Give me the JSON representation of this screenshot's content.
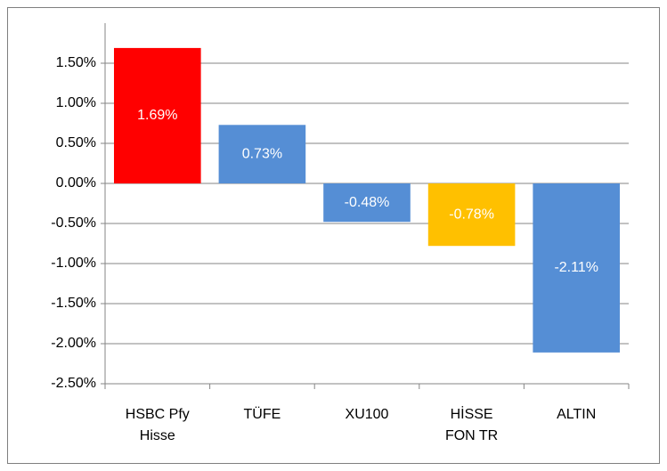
{
  "chart_data": {
    "type": "bar",
    "categories": [
      "HSBC Pfy Hisse",
      "TÜFE",
      "XU100",
      "HİSSE FON TR",
      "ALTIN"
    ],
    "values": [
      1.69,
      0.73,
      -0.48,
      -0.78,
      -2.11
    ],
    "value_labels": [
      "1.69%",
      "0.73%",
      "-0.48%",
      "-0.78%",
      "-2.11%"
    ],
    "colors": [
      "#ff0000",
      "#558ed5",
      "#558ed5",
      "#ffc000",
      "#558ed5"
    ],
    "ylim": [
      -2.5,
      2.0
    ],
    "yticks": [
      {
        "value": 1.5,
        "label": "1.50%"
      },
      {
        "value": 1.0,
        "label": "1.00%"
      },
      {
        "value": 0.5,
        "label": "0.50%"
      },
      {
        "value": 0,
        "label": "0.00%"
      },
      {
        "value": -0.5,
        "label": "-0.50%"
      },
      {
        "value": -1.0,
        "label": "-1.00%"
      },
      {
        "value": -1.5,
        "label": "-1.50%"
      },
      {
        "value": -2.0,
        "label": "-2.00%"
      },
      {
        "value": -2.5,
        "label": "-2.50%"
      }
    ],
    "grid": true
  }
}
